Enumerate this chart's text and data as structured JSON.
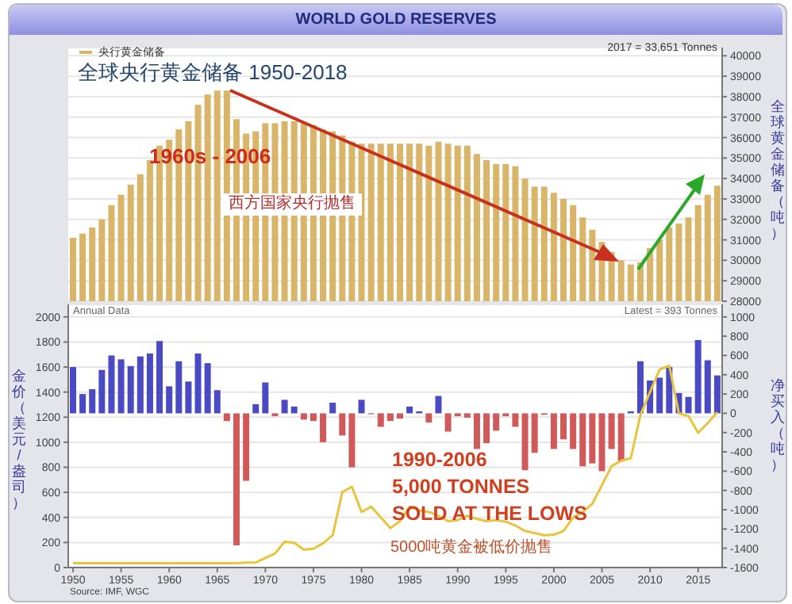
{
  "chart_data": [
    {
      "type": "bar",
      "title": "WORLD GOLD RESERVES",
      "subtitle": "全球央行黄金储备 1950-2018",
      "ylabel": "全球黄金储备（吨）",
      "x": [
        1950,
        1951,
        1952,
        1953,
        1954,
        1955,
        1956,
        1957,
        1958,
        1959,
        1960,
        1961,
        1962,
        1963,
        1964,
        1965,
        1966,
        1967,
        1968,
        1969,
        1970,
        1971,
        1972,
        1973,
        1974,
        1975,
        1976,
        1977,
        1978,
        1979,
        1980,
        1981,
        1982,
        1983,
        1984,
        1985,
        1986,
        1987,
        1988,
        1989,
        1990,
        1991,
        1992,
        1993,
        1994,
        1995,
        1996,
        1997,
        1998,
        1999,
        2000,
        2001,
        2002,
        2003,
        2004,
        2005,
        2006,
        2007,
        2008,
        2009,
        2010,
        2011,
        2012,
        2013,
        2014,
        2015,
        2016,
        2017
      ],
      "series": [
        {
          "name": "央行黄金储备",
          "color": "#d9b56a",
          "values": [
            31100,
            31300,
            31600,
            32000,
            32700,
            33200,
            33700,
            34200,
            34900,
            35600,
            35900,
            36400,
            36800,
            37600,
            38100,
            38300,
            38300,
            36900,
            36200,
            36300,
            36700,
            36700,
            36800,
            36800,
            36700,
            36600,
            36400,
            36300,
            36100,
            35800,
            35700,
            35700,
            35700,
            35700,
            35700,
            35700,
            35700,
            35600,
            35800,
            35700,
            35600,
            35600,
            35200,
            34900,
            34700,
            34700,
            34600,
            34000,
            33600,
            33600,
            33300,
            33000,
            32700,
            32100,
            31500,
            30900,
            30400,
            30000,
            29800,
            29900,
            30600,
            31000,
            31600,
            31800,
            32100,
            32700,
            33200,
            33651
          ]
        }
      ],
      "annotations": [
        "2017 = 33,651 Tonnes",
        "1960s - 2006",
        "西方国家央行抛售"
      ],
      "xlim": [
        1949.5,
        2017.5
      ],
      "ylim": [
        28000,
        40400
      ],
      "yticks": [
        28000,
        29000,
        30000,
        31000,
        32000,
        33000,
        34000,
        35000,
        36000,
        37000,
        38000,
        39000,
        40000
      ],
      "tick_labels": "y",
      "grid": "y",
      "legend": "top left"
    },
    {
      "type": "bar",
      "ylabel": "金价（美元/盎司）",
      "y2label": "净买入（吨）",
      "x": [
        1950,
        1951,
        1952,
        1953,
        1954,
        1955,
        1956,
        1957,
        1958,
        1959,
        1960,
        1961,
        1962,
        1963,
        1964,
        1965,
        1966,
        1967,
        1968,
        1969,
        1970,
        1971,
        1972,
        1973,
        1974,
        1975,
        1976,
        1977,
        1978,
        1979,
        1980,
        1981,
        1982,
        1983,
        1984,
        1985,
        1986,
        1987,
        1988,
        1989,
        1990,
        1991,
        1992,
        1993,
        1994,
        1995,
        1996,
        1997,
        1998,
        1999,
        2000,
        2001,
        2002,
        2003,
        2004,
        2005,
        2006,
        2007,
        2008,
        2009,
        2010,
        2011,
        2012,
        2013,
        2014,
        2015,
        2016,
        2017
      ],
      "series": [
        {
          "type": "bar",
          "axis": "y2",
          "values": [
            480,
            200,
            250,
            450,
            600,
            560,
            490,
            590,
            620,
            750,
            280,
            540,
            330,
            620,
            520,
            240,
            -80,
            -1370,
            -700,
            95,
            320,
            -30,
            140,
            70,
            -65,
            -80,
            -300,
            110,
            -230,
            -560,
            140,
            -10,
            -140,
            -80,
            -55,
            70,
            20,
            -95,
            180,
            -190,
            -30,
            -45,
            -370,
            -310,
            -180,
            -30,
            -140,
            -590,
            -410,
            -15,
            -370,
            -270,
            -370,
            -550,
            -520,
            -600,
            -370,
            -500,
            20,
            540,
            340,
            370,
            480,
            210,
            170,
            760,
            550,
            393
          ],
          "colors": [
            "#4a4ac4",
            "#4a4ac4",
            "#4a4ac4",
            "#4a4ac4",
            "#4a4ac4",
            "#4a4ac4",
            "#4a4ac4",
            "#4a4ac4",
            "#4a4ac4",
            "#4a4ac4",
            "#4a4ac4",
            "#4a4ac4",
            "#4a4ac4",
            "#4a4ac4",
            "#4a4ac4",
            "#4a4ac4",
            "#d05a5a",
            "#d05a5a",
            "#d05a5a",
            "#4a4ac4",
            "#4a4ac4",
            "#d05a5a",
            "#4a4ac4",
            "#4a4ac4",
            "#d05a5a",
            "#d05a5a",
            "#d05a5a",
            "#4a4ac4",
            "#d05a5a",
            "#d05a5a",
            "#4a4ac4",
            "#d05a5a",
            "#d05a5a",
            "#d05a5a",
            "#d05a5a",
            "#4a4ac4",
            "#4a4ac4",
            "#d05a5a",
            "#4a4ac4",
            "#d05a5a",
            "#d05a5a",
            "#d05a5a",
            "#d05a5a",
            "#d05a5a",
            "#d05a5a",
            "#d05a5a",
            "#d05a5a",
            "#d05a5a",
            "#d05a5a",
            "#d05a5a",
            "#d05a5a",
            "#d05a5a",
            "#d05a5a",
            "#d05a5a",
            "#d05a5a",
            "#d05a5a",
            "#d05a5a",
            "#d05a5a",
            "#4a4ac4",
            "#4a4ac4",
            "#4a4ac4",
            "#4a4ac4",
            "#4a4ac4",
            "#4a4ac4",
            "#4a4ac4",
            "#4a4ac4",
            "#4a4ac4",
            "#4a4ac4"
          ]
        },
        {
          "type": "line",
          "axis": "y",
          "color": "#e8c43c",
          "values": [
            35,
            35,
            35,
            35,
            35,
            35,
            35,
            35,
            35,
            35,
            35,
            35,
            35,
            35,
            35,
            35,
            35,
            35,
            40,
            41,
            77,
            112,
            206,
            198,
            142,
            150,
            194,
            258,
            602,
            645,
            443,
            486,
            400,
            314,
            370,
            486,
            456,
            443,
            413,
            370,
            378,
            413,
            387,
            370,
            378,
            366,
            335,
            292,
            275,
            258,
            262,
            292,
            400,
            443,
            508,
            658,
            809,
            852,
            873,
            1217,
            1400,
            1580,
            1610,
            1230,
            1209,
            1075,
            1153,
            1239
          ]
        }
      ],
      "annotations": [
        "Annual Data",
        "Latest = 393 Tonnes",
        "1990-2006",
        "5,000 TONNES",
        "SOLD AT THE LOWS",
        "5000吨黄金被低价抛售",
        "Source: IMF, WGC"
      ],
      "xlim": [
        1949.5,
        2017.5
      ],
      "xticks": [
        1950,
        1955,
        1960,
        1965,
        1970,
        1975,
        1980,
        1985,
        1990,
        1995,
        2000,
        2005,
        2010,
        2015
      ],
      "ylim": [
        0,
        2100
      ],
      "yticks": [
        0,
        200,
        400,
        600,
        800,
        1000,
        1200,
        1400,
        1600,
        1800,
        2000
      ],
      "y2lim": [
        -1600,
        1130
      ],
      "y2ticks": [
        -1600,
        -1400,
        -1200,
        -1000,
        -800,
        -600,
        -400,
        -200,
        0,
        200,
        400,
        600,
        800,
        1000
      ],
      "grid": "y",
      "marker": "none",
      "line_style": "solid"
    }
  ]
}
